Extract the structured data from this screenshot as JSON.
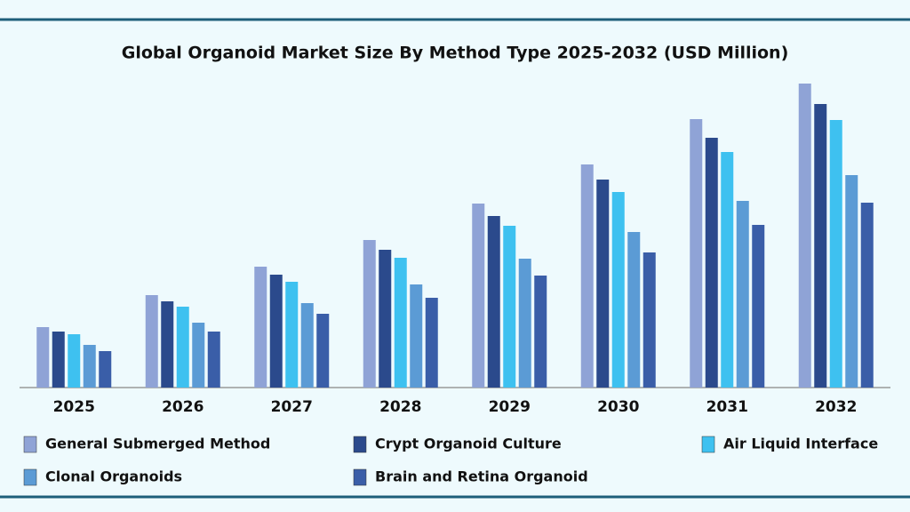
{
  "chart_data": {
    "type": "bar",
    "title": "Global Organoid Market Size By Method Type 2025-2032 (USD Million)",
    "categories": [
      "2025",
      "2026",
      "2027",
      "2028",
      "2029",
      "2030",
      "2031",
      "2032"
    ],
    "series": [
      {
        "name": "General Submerged Method",
        "color": "#8fa3d6",
        "values": [
          68,
          104,
          136,
          166,
          207,
          251,
          302,
          342
        ]
      },
      {
        "name": "Crypt Organoid Culture",
        "color": "#2b4a8c",
        "values": [
          63,
          97,
          127,
          155,
          193,
          234,
          281,
          319
        ]
      },
      {
        "name": "Air Liquid Interface",
        "color": "#3ec1f0",
        "values": [
          60,
          91,
          119,
          146,
          182,
          220,
          265,
          301
        ]
      },
      {
        "name": "Clonal Organoids",
        "color": "#5b9bd5",
        "values": [
          48,
          73,
          95,
          116,
          145,
          175,
          210,
          239
        ]
      },
      {
        "name": "Brain and Retina Organoid",
        "color": "#3a5ea8",
        "values": [
          41,
          63,
          83,
          101,
          126,
          152,
          183,
          208
        ]
      }
    ],
    "ylim": [
      0,
      350
    ]
  }
}
